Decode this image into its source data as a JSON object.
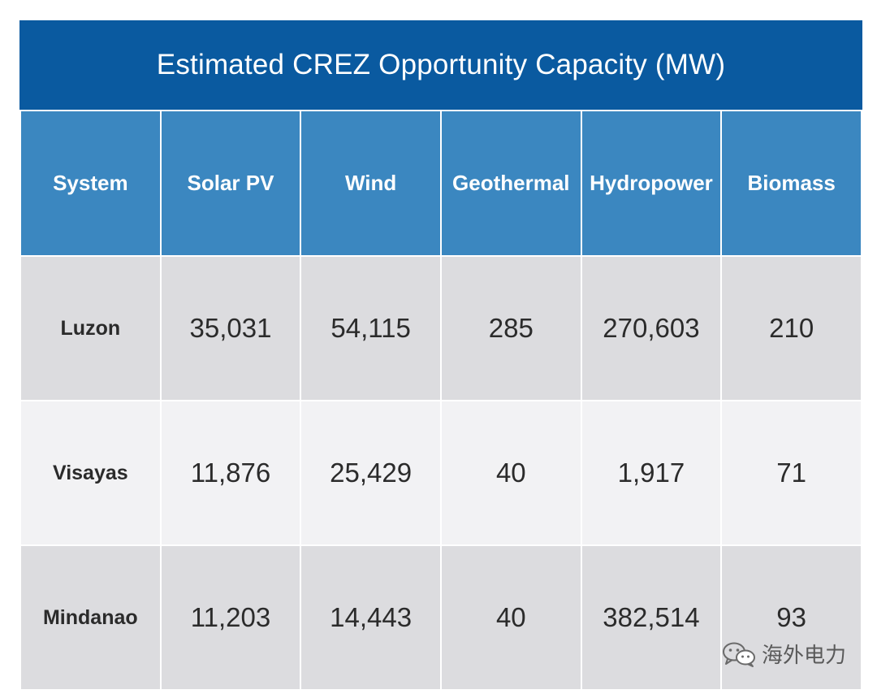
{
  "chart_data": {
    "type": "table",
    "title": "Estimated CREZ Opportunity Capacity (MW)",
    "columns": [
      "System",
      "Solar PV",
      "Wind",
      "Geothermal",
      "Hydropower",
      "Biomass"
    ],
    "rows": [
      {
        "label": "Luzon",
        "values": [
          "35,031",
          "54,115",
          "285",
          "270,603",
          "210"
        ]
      },
      {
        "label": "Visayas",
        "values": [
          "11,876",
          "25,429",
          "40",
          "1,917",
          "71"
        ]
      },
      {
        "label": "Mindanao",
        "values": [
          "11,203",
          "14,443",
          "40",
          "382,514",
          "93"
        ]
      }
    ]
  },
  "colors": {
    "title_bg": "#0a5aa0",
    "header_bg": "#3b87c0",
    "row_odd_bg": "#dcdcdf",
    "row_even_bg": "#f2f2f4"
  },
  "watermark": {
    "icon": "wechat-icon",
    "text": "海外电力"
  }
}
